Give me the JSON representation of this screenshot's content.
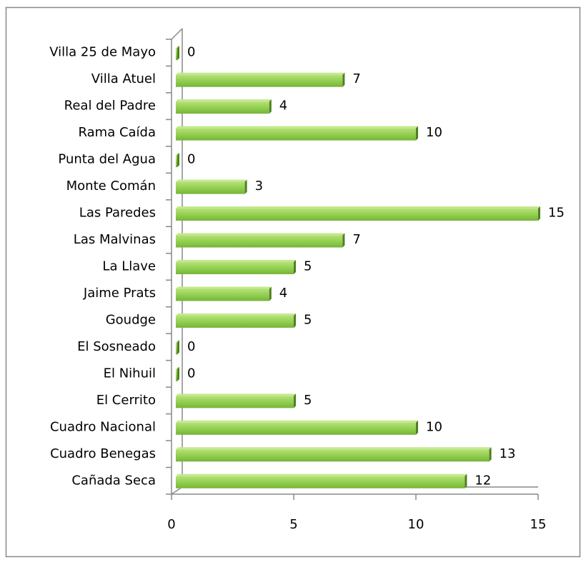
{
  "chart_data": {
    "type": "bar",
    "orientation": "horizontal",
    "categories": [
      "Cañada Seca",
      "Cuadro Benegas",
      "Cuadro Nacional",
      "El Cerrito",
      "El Nihuil",
      "El Sosneado",
      "Goudge",
      "Jaime Prats",
      "La Llave",
      "Las Malvinas",
      "Las Paredes",
      "Monte Comán",
      "Punta del Agua",
      "Rama Caída",
      "Real del Padre",
      "Villa Atuel",
      "Villa 25 de Mayo"
    ],
    "values": [
      12,
      13,
      10,
      5,
      0,
      0,
      5,
      4,
      5,
      7,
      15,
      3,
      0,
      10,
      4,
      7,
      0
    ],
    "color": "#92d050",
    "xlim": [
      0,
      15
    ],
    "xticks": [
      0,
      5,
      10,
      15
    ],
    "grid": false
  }
}
